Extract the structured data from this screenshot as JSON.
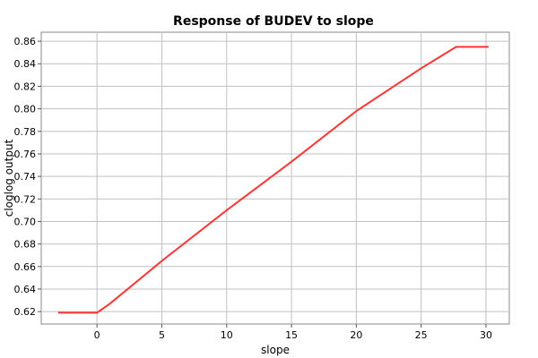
{
  "chart_data": {
    "type": "line",
    "title": "Response of BUDEV to slope",
    "xlabel": "slope",
    "ylabel": "cloglog output",
    "xlim": [
      -4.3,
      31.8
    ],
    "ylim": [
      0.609,
      0.868
    ],
    "xticks": [
      0,
      5,
      10,
      15,
      20,
      25,
      30
    ],
    "yticks": [
      0.62,
      0.64,
      0.66,
      0.68,
      0.7,
      0.72,
      0.74,
      0.76,
      0.78,
      0.8,
      0.82,
      0.84,
      0.86
    ],
    "ytick_labels": [
      "0.62",
      "0.64",
      "0.66",
      "0.68",
      "0.70",
      "0.72",
      "0.74",
      "0.76",
      "0.78",
      "0.80",
      "0.82",
      "0.84",
      "0.86"
    ],
    "grid": true,
    "series": [
      {
        "color": "#ff3333",
        "points": [
          [
            -3.0,
            0.619
          ],
          [
            0.0,
            0.619
          ],
          [
            1.0,
            0.627
          ],
          [
            5.0,
            0.665
          ],
          [
            10.0,
            0.71
          ],
          [
            15.0,
            0.753
          ],
          [
            20.0,
            0.798
          ],
          [
            25.0,
            0.836
          ],
          [
            27.7,
            0.855
          ],
          [
            30.2,
            0.855
          ]
        ]
      }
    ]
  }
}
